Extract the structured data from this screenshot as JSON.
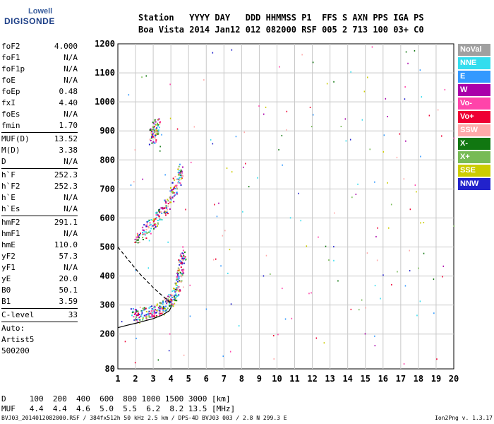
{
  "logo": {
    "line1": "Lowell",
    "line2": "DIGISONDE"
  },
  "header": {
    "line1": "Station   YYYY DAY   DDD HHMMSS P1  FFS S AXN PPS IGA PS",
    "line2": "Boa Vista 2014 Jan12 012 082000 RSF 005 2 713 100 03+ C0"
  },
  "params": {
    "group1": [
      {
        "k": "foF2",
        "v": "4.000"
      },
      {
        "k": "foF1",
        "v": "N/A"
      },
      {
        "k": "foF1p",
        "v": "N/A"
      },
      {
        "k": "foE",
        "v": "N/A"
      },
      {
        "k": "foEp",
        "v": "0.48"
      },
      {
        "k": "fxI",
        "v": "4.40"
      },
      {
        "k": "foEs",
        "v": "N/A"
      },
      {
        "k": "fmin",
        "v": "1.70"
      }
    ],
    "group2": [
      {
        "k": "MUF(D)",
        "v": "13.52"
      },
      {
        "k": "M(D)",
        "v": "3.38"
      },
      {
        "k": "D",
        "v": "N/A"
      }
    ],
    "group3": [
      {
        "k": "h`F",
        "v": "252.3"
      },
      {
        "k": "h`F2",
        "v": "252.3"
      },
      {
        "k": "h`E",
        "v": "N/A"
      },
      {
        "k": "h`Es",
        "v": "N/A"
      }
    ],
    "group4": [
      {
        "k": "hmF2",
        "v": "291.1"
      },
      {
        "k": "hmF1",
        "v": "N/A"
      },
      {
        "k": "hmE",
        "v": "110.0"
      },
      {
        "k": "yF2",
        "v": "57.3"
      },
      {
        "k": "yF1",
        "v": "N/A"
      },
      {
        "k": "yE",
        "v": "20.0"
      },
      {
        "k": "B0",
        "v": "50.1"
      },
      {
        "k": "B1",
        "v": "3.59"
      }
    ],
    "clevel": {
      "k": "C-level",
      "v": "33"
    },
    "notes": [
      "Auto:",
      "Artist5",
      "500200"
    ]
  },
  "legend": [
    {
      "label": "NoVal",
      "color": "#a0a0a0"
    },
    {
      "label": "NNE",
      "color": "#33ddee"
    },
    {
      "label": "E",
      "color": "#3399ff"
    },
    {
      "label": "W",
      "color": "#aa00aa"
    },
    {
      "label": "Vo-",
      "color": "#ff44aa"
    },
    {
      "label": "Vo+",
      "color": "#ee0033"
    },
    {
      "label": "SSW",
      "color": "#ffaaaa"
    },
    {
      "label": "X-",
      "color": "#117711"
    },
    {
      "label": "X+",
      "color": "#77bb55"
    },
    {
      "label": "SSE",
      "color": "#cccc00"
    },
    {
      "label": "NNW",
      "color": "#2222cc"
    }
  ],
  "muf_table": {
    "row1": "D     100  200  400  600  800 1000 1500 3000 [km]",
    "row2": "MUF   4.4  4.4  4.6  5.0  5.5  6.2  8.2 13.5 [MHz]"
  },
  "footer": {
    "left": "BVJ03_2014012082000.RSF / 384fx512h 50 kHz 2.5 km / DPS-4D BVJ03 003 / 2.8 N 299.3 E",
    "right": "Ion2Png v. 1.3.17"
  },
  "chart_data": {
    "type": "scatter",
    "x_ticks": [
      "1",
      "2",
      "3",
      "4",
      "5",
      "6",
      "7",
      "8",
      "9",
      "10",
      "11",
      "12",
      "13",
      "14",
      "15",
      "16",
      "17",
      "18",
      "19",
      "20"
    ],
    "y_ticks": [
      "80",
      "200",
      "300",
      "400",
      "500",
      "600",
      "700",
      "800",
      "900",
      "1000",
      "1100",
      "1200"
    ],
    "xlim": [
      1,
      20
    ],
    "ylim": [
      80,
      1200
    ],
    "grid": true,
    "traces": [
      {
        "name": "ionogram-F-trace",
        "points": [
          [
            1.8,
            255
          ],
          [
            2.2,
            258
          ],
          [
            2.6,
            262
          ],
          [
            3.0,
            268
          ],
          [
            3.3,
            275
          ],
          [
            3.6,
            285
          ],
          [
            3.8,
            295
          ],
          [
            4.0,
            310
          ],
          [
            4.2,
            330
          ],
          [
            4.4,
            360
          ],
          [
            4.5,
            400
          ],
          [
            4.6,
            440
          ],
          [
            4.7,
            470
          ]
        ]
      },
      {
        "name": "ionogram-F-2hop",
        "points": [
          [
            2.0,
            520
          ],
          [
            2.4,
            535
          ],
          [
            2.8,
            560
          ],
          [
            3.2,
            590
          ],
          [
            3.6,
            620
          ],
          [
            3.9,
            650
          ],
          [
            4.2,
            690
          ],
          [
            4.4,
            730
          ],
          [
            4.5,
            760
          ]
        ]
      },
      {
        "name": "ionogram-F-3hop",
        "points": [
          [
            2.9,
            860
          ],
          [
            3.0,
            880
          ],
          [
            3.1,
            900
          ],
          [
            3.2,
            925
          ]
        ]
      }
    ],
    "profile_solid": [
      [
        1.0,
        222
      ],
      [
        1.5,
        230
      ],
      [
        2.0,
        237
      ],
      [
        2.5,
        245
      ],
      [
        3.0,
        253
      ],
      [
        3.5,
        265
      ],
      [
        3.9,
        280
      ],
      [
        4.0,
        291
      ],
      [
        4.0,
        300
      ]
    ],
    "profile_dashed": [
      [
        1.0,
        500
      ],
      [
        1.4,
        470
      ],
      [
        1.8,
        440
      ],
      [
        2.2,
        410
      ],
      [
        2.6,
        385
      ],
      [
        3.0,
        360
      ],
      [
        3.4,
        338
      ],
      [
        3.8,
        318
      ],
      [
        4.0,
        305
      ]
    ]
  }
}
